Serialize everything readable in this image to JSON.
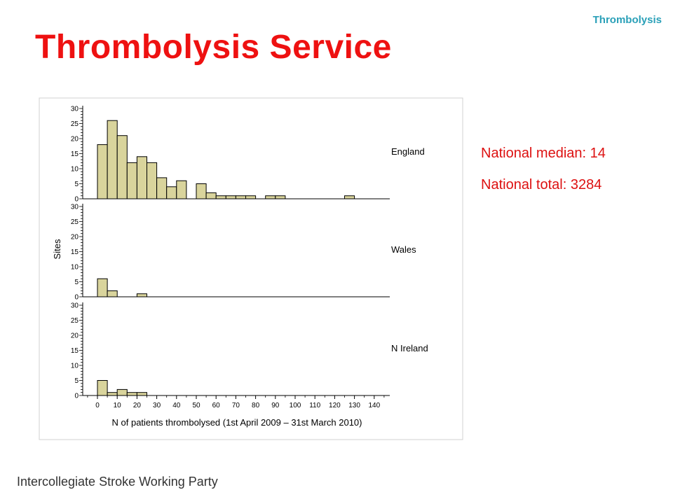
{
  "header": {
    "corner_label": "Thrombolysis",
    "title": "Thrombolysis Service"
  },
  "stats": {
    "median": "National median: 14",
    "total": "National total: 3284"
  },
  "footer": {
    "text": "Intercollegiate Stroke Working Party"
  },
  "colors": {
    "bar_fill": "#d9d49c",
    "bar_stroke": "#000000",
    "title": "#ee1111",
    "accent": "#2aa0b8"
  },
  "chart_data": {
    "type": "bar",
    "xlabel": "N of patients thrombolysed (1st April 2009 – 31st March 2010)",
    "ylabel": "Sites",
    "bin_width": 5,
    "x_ticks": [
      0,
      10,
      20,
      30,
      40,
      50,
      60,
      70,
      80,
      90,
      100,
      110,
      120,
      130,
      140
    ],
    "y_ticks": [
      0,
      5,
      10,
      15,
      20,
      25,
      30
    ],
    "ylim": [
      0,
      30
    ],
    "xlim": [
      -5,
      145
    ],
    "grid": false,
    "panels": [
      {
        "name": "England",
        "bins": [
          0,
          5,
          10,
          15,
          20,
          25,
          30,
          35,
          40,
          50,
          55,
          60,
          65,
          70,
          75,
          85,
          90,
          125
        ],
        "values": [
          18,
          26,
          21,
          12,
          14,
          12,
          7,
          4,
          6,
          5,
          2,
          1,
          1,
          1,
          1,
          1,
          1,
          1
        ]
      },
      {
        "name": "Wales",
        "bins": [
          0,
          5,
          20
        ],
        "values": [
          6,
          2,
          1
        ]
      },
      {
        "name": "N Ireland",
        "bins": [
          0,
          5,
          10,
          15,
          20
        ],
        "values": [
          5,
          1,
          2,
          1,
          1
        ]
      }
    ]
  }
}
